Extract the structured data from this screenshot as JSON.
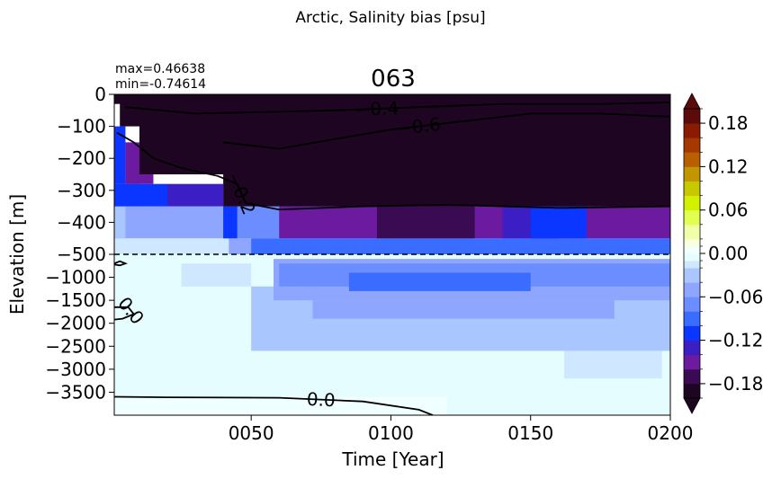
{
  "chart_data": {
    "type": "heatmap",
    "suptitle": "Arctic, Salinity bias [psu]",
    "title": "063",
    "stats": {
      "max": "max=0.46638",
      "min": "min=-0.74614"
    },
    "xlabel": "Time [Year]",
    "ylabel": "Elevation [m]",
    "xlim": [
      1,
      200
    ],
    "xticks": [
      {
        "value": 50,
        "label": "0050"
      },
      {
        "value": 100,
        "label": "0100"
      },
      {
        "value": 150,
        "label": "0150"
      },
      {
        "value": 200,
        "label": "0200"
      }
    ],
    "upper_ylim": [
      -500,
      0
    ],
    "upper_yticks": [
      {
        "value": 0,
        "label": "0"
      },
      {
        "value": -100,
        "label": "−100"
      },
      {
        "value": -200,
        "label": "−200"
      },
      {
        "value": -300,
        "label": "−300"
      },
      {
        "value": -400,
        "label": "−400"
      },
      {
        "value": -500,
        "label": "−500"
      }
    ],
    "lower_ylim": [
      -4000,
      -500
    ],
    "lower_yticks": [
      {
        "value": -1000,
        "label": "−1000"
      },
      {
        "value": -1500,
        "label": "−1500"
      },
      {
        "value": -2000,
        "label": "−2000"
      },
      {
        "value": -2500,
        "label": "−2500"
      },
      {
        "value": -3000,
        "label": "−3000"
      },
      {
        "value": -3500,
        "label": "−3500"
      }
    ],
    "colorbar": {
      "levels": [
        -0.2,
        -0.18,
        -0.16,
        -0.14,
        -0.12,
        -0.1,
        -0.08,
        -0.06,
        -0.04,
        -0.02,
        -0.01,
        0.0,
        0.01,
        0.02,
        0.04,
        0.06,
        0.08,
        0.1,
        0.12,
        0.14,
        0.16,
        0.18,
        0.2
      ],
      "colors": [
        "#1e0521",
        "#3a0b52",
        "#6c1aa0",
        "#3b1fc4",
        "#0a36ff",
        "#3a6cff",
        "#6b8dff",
        "#8fa6ff",
        "#a9c6ff",
        "#cfe8ff",
        "#e5fdff",
        "#f0ffff",
        "#fbffe0",
        "#f1ffa8",
        "#e2ff50",
        "#d2f000",
        "#c8c800",
        "#c29600",
        "#b86000",
        "#a43800",
        "#8a1a00",
        "#5c0a0a"
      ],
      "under_color": "#1e0521",
      "over_color": "#5c0a0a",
      "ticks": [
        {
          "value": 0.18,
          "label": "0.18"
        },
        {
          "value": 0.12,
          "label": "0.12"
        },
        {
          "value": 0.06,
          "label": "0.06"
        },
        {
          "value": 0.0,
          "label": "0.00"
        },
        {
          "value": -0.06,
          "label": "−0.06"
        },
        {
          "value": -0.12,
          "label": "−0.12"
        },
        {
          "value": -0.18,
          "label": "−0.18"
        }
      ]
    },
    "regions": [
      {
        "x0": 1,
        "x1": 200,
        "z0": -4000,
        "z1": -500,
        "v": -0.005
      },
      {
        "x0": 1,
        "x1": 200,
        "z0": -4000,
        "z1": -3600,
        "v": 0.005
      },
      {
        "x0": 120,
        "x1": 200,
        "z0": -4000,
        "z1": -3600,
        "v": -0.005
      },
      {
        "x0": 162,
        "x1": 197,
        "z0": -3200,
        "z1": -2600,
        "v": -0.015
      },
      {
        "x0": 50,
        "x1": 200,
        "z0": -2600,
        "z1": -1200,
        "v": -0.03
      },
      {
        "x0": 25,
        "x1": 50,
        "z0": -1200,
        "z1": -700,
        "v": -0.015
      },
      {
        "x0": 72,
        "x1": 180,
        "z0": -1900,
        "z1": -1500,
        "v": -0.05
      },
      {
        "x0": 58,
        "x1": 200,
        "z0": -1500,
        "z1": -600,
        "v": -0.05
      },
      {
        "x0": 60,
        "x1": 200,
        "z0": -1200,
        "z1": -700,
        "v": -0.07
      },
      {
        "x0": 85,
        "x1": 150,
        "z0": -1300,
        "z1": -900,
        "v": -0.09
      },
      {
        "x0": 1,
        "x1": 200,
        "z0": -500,
        "z1": -450,
        "v": -0.015
      },
      {
        "x0": 42,
        "x1": 200,
        "z0": -500,
        "z1": -450,
        "v": -0.05
      },
      {
        "x0": 50,
        "x1": 200,
        "z0": -500,
        "z1": -450,
        "v": -0.09
      },
      {
        "x0": 1,
        "x1": 200,
        "z0": -450,
        "z1": -350,
        "v": -0.05
      },
      {
        "x0": 1,
        "x1": 5,
        "z0": -450,
        "z1": -350,
        "v": -0.03
      },
      {
        "x0": 40,
        "x1": 200,
        "z0": -450,
        "z1": -350,
        "v": -0.07
      },
      {
        "x0": 40,
        "x1": 45,
        "z0": -450,
        "z1": -350,
        "v": -0.11
      },
      {
        "x0": 60,
        "x1": 200,
        "z0": -450,
        "z1": -350,
        "v": -0.15
      },
      {
        "x0": 95,
        "x1": 130,
        "z0": -450,
        "z1": -350,
        "v": -0.17
      },
      {
        "x0": 140,
        "x1": 160,
        "z0": -450,
        "z1": -350,
        "v": -0.13
      },
      {
        "x0": 150,
        "x1": 170,
        "z0": -450,
        "z1": -350,
        "v": -0.11
      },
      {
        "x0": 1,
        "x1": 10,
        "z0": -350,
        "z1": -280,
        "v": -0.07
      },
      {
        "x0": 1,
        "x1": 20,
        "z0": -350,
        "z1": -280,
        "v": -0.11
      },
      {
        "x0": 20,
        "x1": 40,
        "z0": -350,
        "z1": -280,
        "v": -0.13
      },
      {
        "x0": 1,
        "x1": 5,
        "z0": -280,
        "z1": -100,
        "v": -0.11
      },
      {
        "x0": 5,
        "x1": 15,
        "z0": -280,
        "z1": -150,
        "v": -0.15
      },
      {
        "x0": 40,
        "x1": 200,
        "z0": -350,
        "z1": -250,
        "v": -0.19
      },
      {
        "x0": 10,
        "x1": 200,
        "z0": -250,
        "z1": 0,
        "v": -0.25
      },
      {
        "x0": 3,
        "x1": 200,
        "z0": -100,
        "z1": 0,
        "v": -0.25
      },
      {
        "x0": 1,
        "x1": 200,
        "z0": -30,
        "z1": 0,
        "v": -0.25
      }
    ],
    "contours": [
      {
        "label": "−0.2",
        "points": [
          [
            2,
            -120
          ],
          [
            8,
            -150
          ],
          [
            15,
            -200
          ],
          [
            25,
            -230
          ],
          [
            38,
            -255
          ],
          [
            45,
            -280
          ],
          [
            48,
            -340
          ],
          [
            60,
            -360
          ],
          [
            90,
            -350
          ],
          [
            120,
            -345
          ],
          [
            160,
            -355
          ],
          [
            200,
            -350
          ]
        ]
      },
      {
        "label": "−0.4",
        "points": [
          [
            5,
            -40
          ],
          [
            30,
            -60
          ],
          [
            55,
            -55
          ],
          [
            80,
            -50
          ],
          [
            110,
            -40
          ],
          [
            140,
            -30
          ],
          [
            175,
            -30
          ],
          [
            200,
            -25
          ]
        ]
      },
      {
        "label": "−0.6",
        "points": [
          [
            40,
            -150
          ],
          [
            60,
            -170
          ],
          [
            80,
            -140
          ],
          [
            100,
            -110
          ],
          [
            120,
            -90
          ],
          [
            150,
            -60
          ],
          [
            175,
            -60
          ],
          [
            200,
            -70
          ]
        ]
      },
      {
        "label": "0.0",
        "points": [
          [
            1,
            -3600
          ],
          [
            20,
            -3610
          ],
          [
            60,
            -3620
          ],
          [
            90,
            -3700
          ],
          [
            110,
            -3880
          ],
          [
            115,
            -4000
          ]
        ]
      },
      {
        "label": "0.0",
        "points": [
          [
            1,
            -1650
          ],
          [
            6,
            -1650
          ],
          [
            8,
            -1800
          ],
          [
            4,
            -1900
          ],
          [
            1,
            -1920
          ]
        ]
      },
      {
        "label": "",
        "points": [
          [
            1,
            -700
          ],
          [
            3,
            -650
          ],
          [
            5,
            -700
          ],
          [
            3,
            -740
          ],
          [
            1,
            -720
          ]
        ]
      }
    ]
  }
}
